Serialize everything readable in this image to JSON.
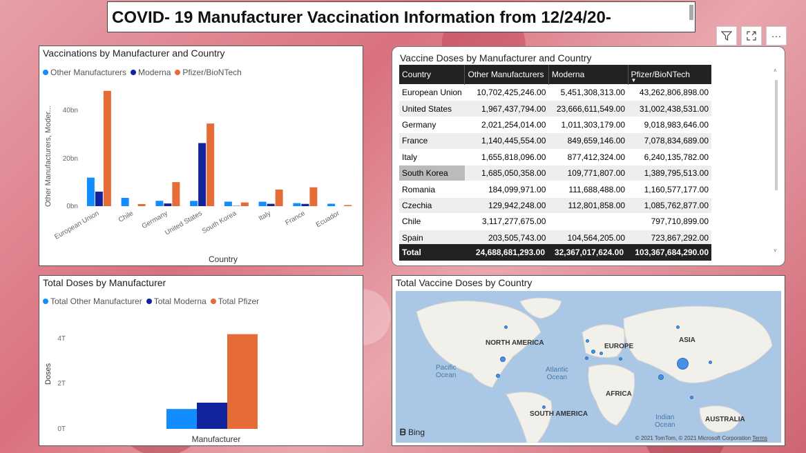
{
  "title": "COVID- 19 Manufacturer Vaccination Information from 12/24/20-",
  "toolbar": {
    "filter_icon": "filter-icon",
    "focus_icon": "focus-mode-icon",
    "more_icon": "more-options-icon",
    "more_label": "···"
  },
  "colors": {
    "other": "#118dff",
    "moderna": "#12239e",
    "pfizer": "#e66c37"
  },
  "chart1": {
    "title": "Vaccinations by Manufacturer and Country",
    "legend": [
      "Other Manufacturers",
      "Moderna",
      "Pfizer/BioNTech"
    ],
    "ylabel": "Other Manufacturers, Moder...",
    "xlabel": "Country",
    "ticks": [
      "40bn",
      "20bn",
      "0bn"
    ]
  },
  "chart_data": [
    {
      "type": "bar",
      "title": "Vaccinations by Manufacturer and Country",
      "xlabel": "Country",
      "ylabel": "Other Manufacturers, Moder...",
      "ylim": [
        0,
        45
      ],
      "categories": [
        "European Union",
        "Chile",
        "Germany",
        "United States",
        "South Korea",
        "Italy",
        "France",
        "Ecuador"
      ],
      "series": [
        {
          "name": "Other Manufacturers",
          "values": [
            10.7,
            3.1,
            2.0,
            1.97,
            1.69,
            1.66,
            1.14,
            0.9
          ]
        },
        {
          "name": "Moderna",
          "values": [
            5.45,
            0,
            1.01,
            23.67,
            0.11,
            0.88,
            0.85,
            0
          ]
        },
        {
          "name": "Pfizer/BioNTech",
          "values": [
            43.26,
            0.8,
            9.02,
            31.0,
            1.39,
            6.24,
            7.08,
            0.4
          ]
        }
      ]
    },
    {
      "type": "bar",
      "title": "Total Doses by Manufacturer",
      "xlabel": "Manufacturer",
      "ylabel": "Doses",
      "ylim": [
        0,
        4.6
      ],
      "categories": [
        "Manufacturer"
      ],
      "series": [
        {
          "name": "Total Other Manufacturer",
          "values": [
            0.85
          ]
        },
        {
          "name": "Total Moderna",
          "values": [
            1.12
          ]
        },
        {
          "name": "Total Pfizer",
          "values": [
            4.05
          ]
        }
      ]
    }
  ],
  "table": {
    "title": "Vaccine Doses by Manufacturer and Country",
    "headers": [
      "Country",
      "Other Manufacturers",
      "Moderna",
      "Pfizer/BioNTech"
    ],
    "rows": [
      [
        "European Union",
        "10,702,425,246.00",
        "5,451,308,313.00",
        "43,262,806,898.00"
      ],
      [
        "United States",
        "1,967,437,794.00",
        "23,666,611,549.00",
        "31,002,438,531.00"
      ],
      [
        "Germany",
        "2,021,254,014.00",
        "1,011,303,179.00",
        "9,018,983,646.00"
      ],
      [
        "France",
        "1,140,445,554.00",
        "849,659,146.00",
        "7,078,834,689.00"
      ],
      [
        "Italy",
        "1,655,818,096.00",
        "877,412,324.00",
        "6,240,135,782.00"
      ],
      [
        "South Korea",
        "1,685,050,358.00",
        "109,771,807.00",
        "1,389,795,513.00"
      ],
      [
        "Romania",
        "184,099,971.00",
        "111,688,488.00",
        "1,160,577,177.00"
      ],
      [
        "Czechia",
        "129,942,248.00",
        "112,801,858.00",
        "1,085,762,877.00"
      ],
      [
        "Chile",
        "3,117,277,675.00",
        "",
        "797,710,899.00"
      ],
      [
        "Spain",
        "203,505,743.00",
        "104,564,205.00",
        "723,867,292.00"
      ]
    ],
    "total": [
      "Total",
      "24,688,681,293.00",
      "32,367,017,624.00",
      "103,367,684,290.00"
    ]
  },
  "chart2": {
    "title": "Total Doses by Manufacturer",
    "legend": [
      "Total Other Manufacturer",
      "Total Moderna",
      "Total Pfizer"
    ],
    "ylabel": "Doses",
    "xlabel": "Manufacturer",
    "ticks": [
      "4T",
      "2T",
      "0T"
    ]
  },
  "map": {
    "title": "Total Vaccine Doses by Country",
    "continents": [
      "NORTH AMERICA",
      "EUROPE",
      "ASIA",
      "AFRICA",
      "SOUTH AMERICA",
      "AUSTRALIA"
    ],
    "oceans": [
      "Pacific\nOcean",
      "Atlantic\nOcean",
      "Indian\nOcean"
    ],
    "bing": "Bing",
    "copyright": "© 2021 TomTom, © 2021 Microsoft Corporation",
    "terms": "Terms"
  }
}
